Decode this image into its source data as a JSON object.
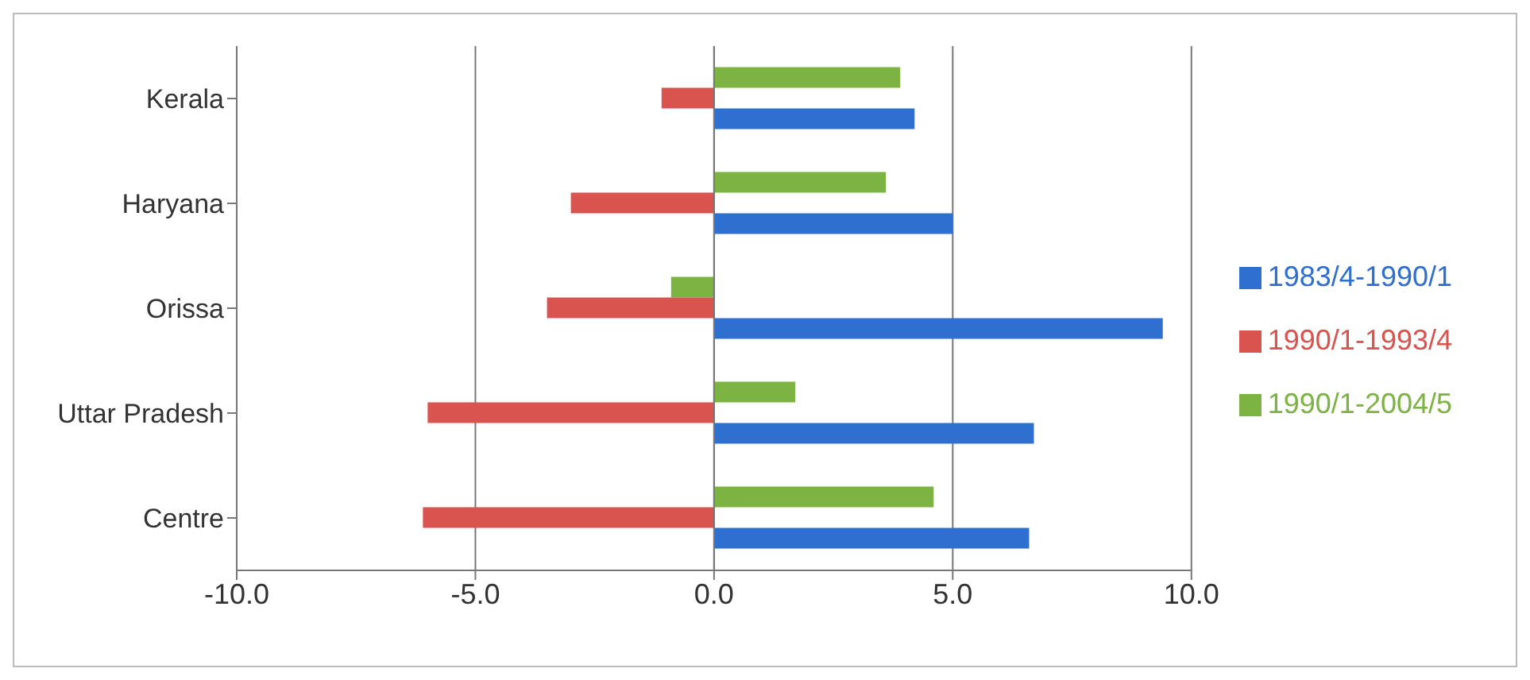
{
  "chart_data": {
    "type": "bar",
    "orientation": "horizontal",
    "categories": [
      "Kerala",
      "Haryana",
      "Orissa",
      "Uttar Pradesh",
      "Centre"
    ],
    "series": [
      {
        "name": "1990/1-2004/5",
        "color": "#7cb342",
        "values": [
          3.9,
          3.6,
          -0.9,
          1.7,
          4.6
        ]
      },
      {
        "name": "1990/1-1993/4",
        "color": "#d9534f",
        "values": [
          -1.1,
          -3.0,
          -3.5,
          -6.0,
          -6.1
        ]
      },
      {
        "name": "1983/4-1990/1",
        "color": "#2f6fcf",
        "values": [
          4.2,
          5.0,
          9.4,
          6.7,
          6.6
        ]
      }
    ],
    "xlim": [
      -10,
      10
    ],
    "xticks": [
      {
        "value": -10,
        "label": "-10.0"
      },
      {
        "value": -5,
        "label": "-5.0"
      },
      {
        "value": 0,
        "label": "0.0"
      },
      {
        "value": 5,
        "label": "5.0"
      },
      {
        "value": 10,
        "label": "10.0"
      }
    ],
    "grid": "x",
    "legend": "right"
  }
}
